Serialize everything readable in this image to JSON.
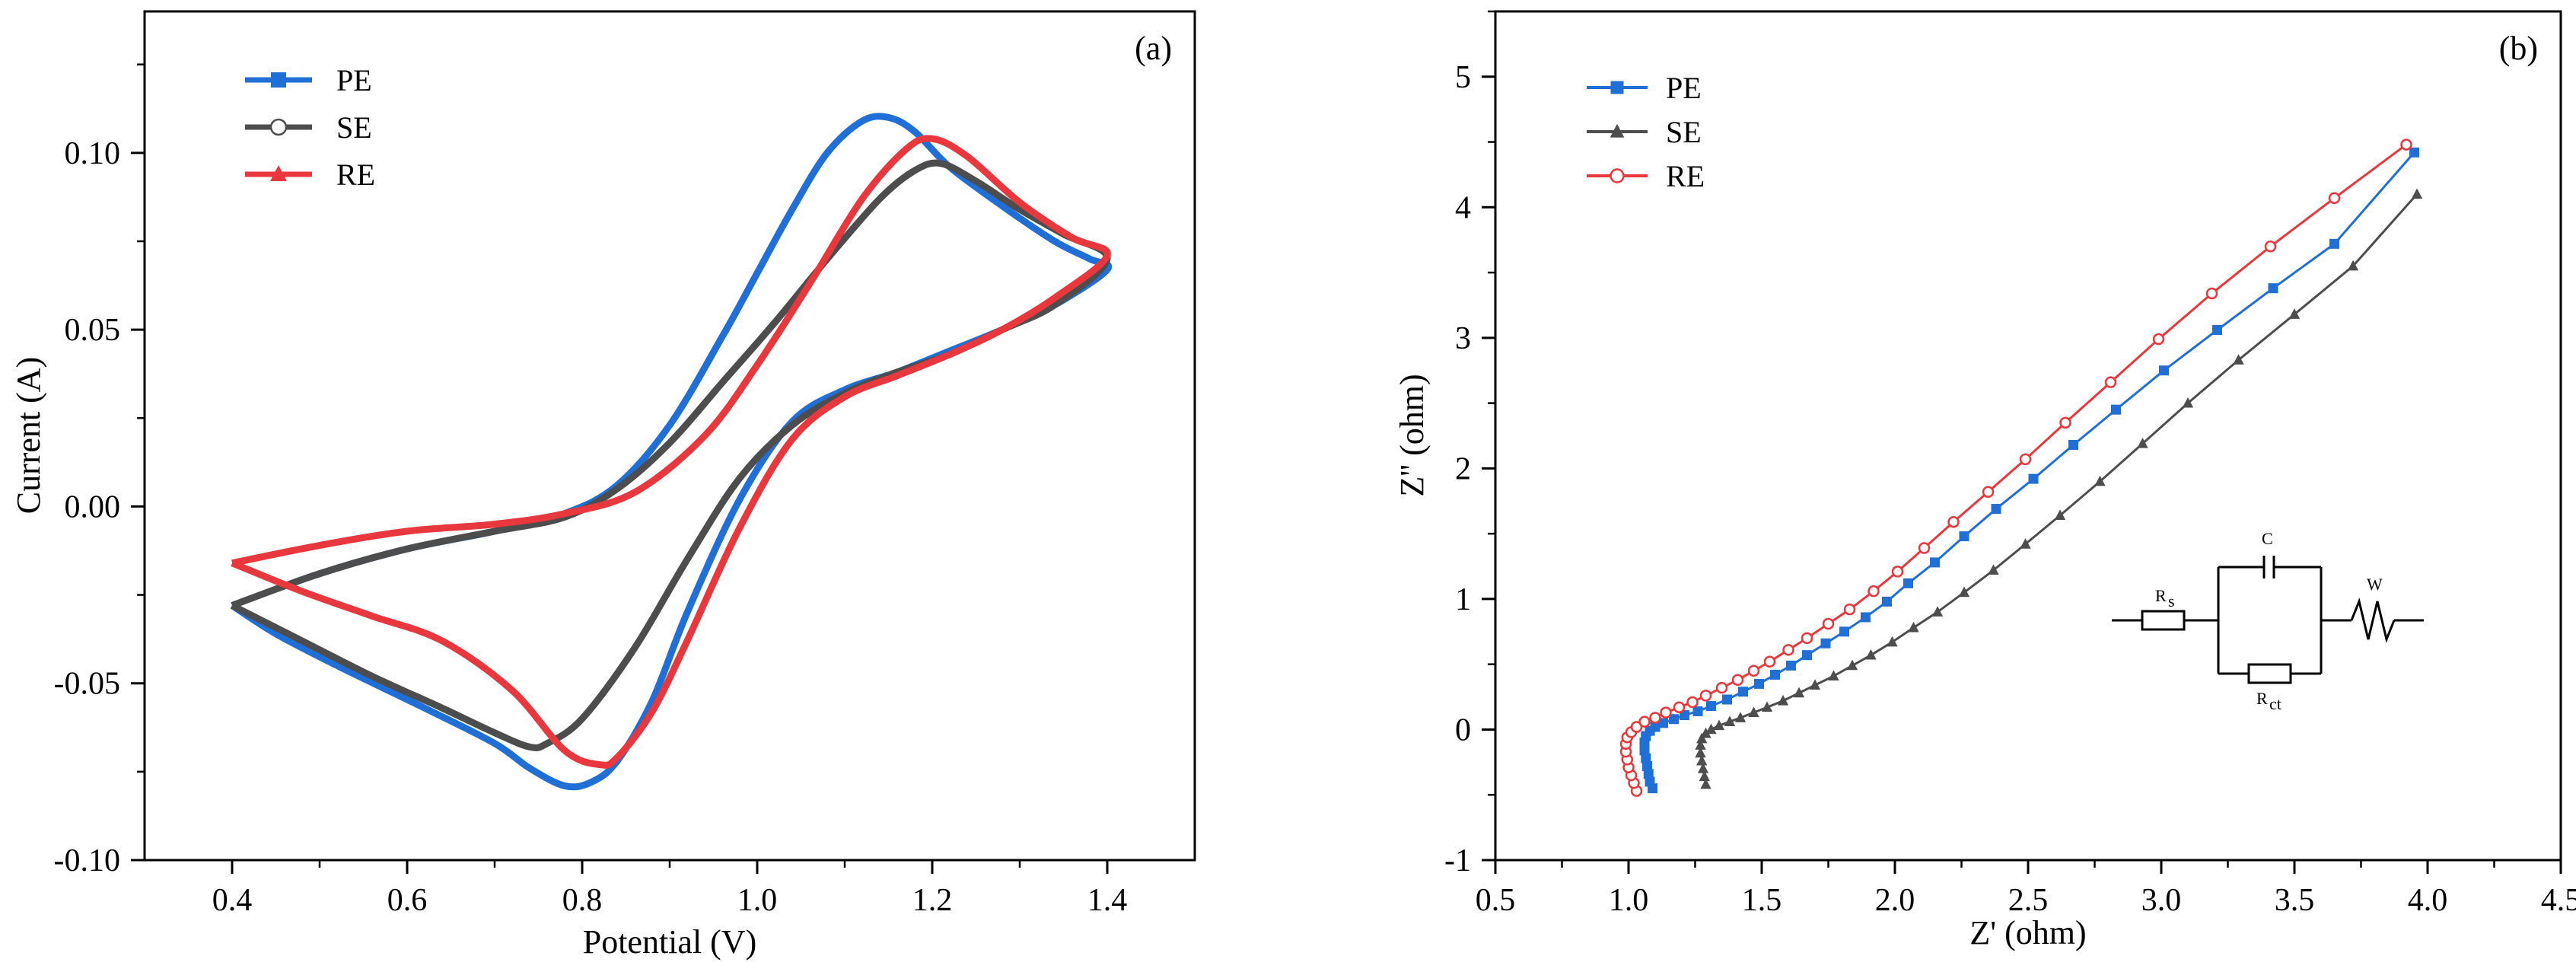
{
  "chart_data": [
    {
      "id": "cv",
      "type": "line",
      "panel_label": "(a)",
      "xlabel": "Potential (V)",
      "ylabel": "Current (A)",
      "xlim": [
        0.3,
        1.5
      ],
      "ylim": [
        -0.1,
        0.14
      ],
      "xticks": [
        0.4,
        0.6,
        0.8,
        1.0,
        1.2,
        1.4
      ],
      "xtick_labels": [
        "0.4",
        "0.6",
        "0.8",
        "1.0",
        "1.2",
        "1.4"
      ],
      "yticks": [
        -0.1,
        -0.05,
        0.0,
        0.05,
        0.1
      ],
      "ytick_labels": [
        "-0.10",
        "-0.05",
        "0.00",
        "0.05",
        "0.10"
      ],
      "legend_position": "top-left",
      "series": [
        {
          "name": "PE",
          "color": "#1f6fd6",
          "marker": "square",
          "forward": [
            [
              0.4,
              -0.028
            ],
            [
              0.5,
              -0.019
            ],
            [
              0.6,
              -0.012
            ],
            [
              0.7,
              -0.007
            ],
            [
              0.78,
              -0.002
            ],
            [
              0.84,
              0.006
            ],
            [
              0.9,
              0.023
            ],
            [
              0.96,
              0.048
            ],
            [
              1.0,
              0.066
            ],
            [
              1.04,
              0.084
            ],
            [
              1.08,
              0.1
            ],
            [
              1.12,
              0.109
            ],
            [
              1.15,
              0.11
            ],
            [
              1.18,
              0.106
            ],
            [
              1.22,
              0.096
            ],
            [
              1.28,
              0.085
            ],
            [
              1.34,
              0.075
            ],
            [
              1.38,
              0.07
            ],
            [
              1.4,
              0.067
            ]
          ],
          "reverse": [
            [
              1.4,
              0.067
            ],
            [
              1.34,
              0.057
            ],
            [
              1.28,
              0.05
            ],
            [
              1.22,
              0.044
            ],
            [
              1.16,
              0.038
            ],
            [
              1.1,
              0.033
            ],
            [
              1.04,
              0.024
            ],
            [
              0.98,
              0.002
            ],
            [
              0.92,
              -0.03
            ],
            [
              0.88,
              -0.055
            ],
            [
              0.84,
              -0.072
            ],
            [
              0.81,
              -0.078
            ],
            [
              0.78,
              -0.079
            ],
            [
              0.74,
              -0.074
            ],
            [
              0.7,
              -0.067
            ],
            [
              0.62,
              -0.057
            ],
            [
              0.52,
              -0.045
            ],
            [
              0.45,
              -0.036
            ],
            [
              0.4,
              -0.028
            ]
          ]
        },
        {
          "name": "SE",
          "color": "#4d4d4d",
          "marker": "circle",
          "forward": [
            [
              0.4,
              -0.028
            ],
            [
              0.5,
              -0.019
            ],
            [
              0.6,
              -0.012
            ],
            [
              0.7,
              -0.007
            ],
            [
              0.78,
              -0.003
            ],
            [
              0.84,
              0.005
            ],
            [
              0.9,
              0.018
            ],
            [
              0.96,
              0.035
            ],
            [
              1.02,
              0.052
            ],
            [
              1.08,
              0.07
            ],
            [
              1.14,
              0.087
            ],
            [
              1.18,
              0.095
            ],
            [
              1.21,
              0.097
            ],
            [
              1.25,
              0.092
            ],
            [
              1.3,
              0.084
            ],
            [
              1.35,
              0.077
            ],
            [
              1.4,
              0.07
            ]
          ],
          "reverse": [
            [
              1.4,
              0.067
            ],
            [
              1.34,
              0.057
            ],
            [
              1.28,
              0.05
            ],
            [
              1.22,
              0.043
            ],
            [
              1.16,
              0.038
            ],
            [
              1.1,
              0.032
            ],
            [
              1.04,
              0.023
            ],
            [
              0.98,
              0.008
            ],
            [
              0.92,
              -0.015
            ],
            [
              0.86,
              -0.04
            ],
            [
              0.8,
              -0.06
            ],
            [
              0.76,
              -0.067
            ],
            [
              0.74,
              -0.068
            ],
            [
              0.7,
              -0.064
            ],
            [
              0.64,
              -0.057
            ],
            [
              0.56,
              -0.048
            ],
            [
              0.48,
              -0.038
            ],
            [
              0.4,
              -0.028
            ]
          ]
        },
        {
          "name": "RE",
          "color": "#e8383d",
          "marker": "triangle",
          "forward": [
            [
              0.4,
              -0.016
            ],
            [
              0.5,
              -0.011
            ],
            [
              0.6,
              -0.007
            ],
            [
              0.7,
              -0.005
            ],
            [
              0.78,
              -0.002
            ],
            [
              0.86,
              0.004
            ],
            [
              0.94,
              0.02
            ],
            [
              1.0,
              0.04
            ],
            [
              1.06,
              0.063
            ],
            [
              1.12,
              0.087
            ],
            [
              1.17,
              0.101
            ],
            [
              1.2,
              0.104
            ],
            [
              1.24,
              0.099
            ],
            [
              1.3,
              0.086
            ],
            [
              1.36,
              0.076
            ],
            [
              1.4,
              0.071
            ]
          ],
          "reverse": [
            [
              1.4,
              0.071
            ],
            [
              1.34,
              0.059
            ],
            [
              1.28,
              0.05
            ],
            [
              1.22,
              0.043
            ],
            [
              1.16,
              0.037
            ],
            [
              1.1,
              0.031
            ],
            [
              1.04,
              0.019
            ],
            [
              0.98,
              -0.006
            ],
            [
              0.92,
              -0.038
            ],
            [
              0.88,
              -0.058
            ],
            [
              0.84,
              -0.071
            ],
            [
              0.82,
              -0.073
            ],
            [
              0.78,
              -0.069
            ],
            [
              0.72,
              -0.052
            ],
            [
              0.64,
              -0.038
            ],
            [
              0.56,
              -0.031
            ],
            [
              0.48,
              -0.024
            ],
            [
              0.4,
              -0.016
            ]
          ]
        }
      ]
    },
    {
      "id": "eis",
      "type": "line",
      "panel_label": "(b)",
      "xlabel": "Z' (ohm)",
      "ylabel": "Z'' (ohm)",
      "xlim": [
        0.5,
        4.5
      ],
      "ylim": [
        -1,
        5.5
      ],
      "xticks": [
        0.5,
        1.0,
        1.5,
        2.0,
        2.5,
        3.0,
        3.5,
        4.0,
        4.5
      ],
      "xtick_labels": [
        "0.5",
        "1.0",
        "1.5",
        "2.0",
        "2.5",
        "3.0",
        "3.5",
        "4.0",
        "4.5"
      ],
      "yticks": [
        -1,
        0,
        1,
        2,
        3,
        4,
        5
      ],
      "ytick_labels": [
        "-1",
        "0",
        "1",
        "2",
        "3",
        "4",
        "5"
      ],
      "legend_position": "top-left",
      "series": [
        {
          "name": "PE",
          "color": "#1f6fd6",
          "marker": "square",
          "points": [
            [
              1.09,
              -0.45
            ],
            [
              1.08,
              -0.4
            ],
            [
              1.075,
              -0.34
            ],
            [
              1.07,
              -0.28
            ],
            [
              1.065,
              -0.22
            ],
            [
              1.06,
              -0.16
            ],
            [
              1.06,
              -0.1
            ],
            [
              1.065,
              -0.05
            ],
            [
              1.08,
              -0.01
            ],
            [
              1.1,
              0.02
            ],
            [
              1.13,
              0.05
            ],
            [
              1.17,
              0.08
            ],
            [
              1.21,
              0.11
            ],
            [
              1.26,
              0.14
            ],
            [
              1.31,
              0.18
            ],
            [
              1.37,
              0.23
            ],
            [
              1.43,
              0.29
            ],
            [
              1.49,
              0.35
            ],
            [
              1.55,
              0.42
            ],
            [
              1.61,
              0.49
            ],
            [
              1.67,
              0.57
            ],
            [
              1.74,
              0.66
            ],
            [
              1.81,
              0.75
            ],
            [
              1.89,
              0.86
            ],
            [
              1.97,
              0.98
            ],
            [
              2.05,
              1.12
            ],
            [
              2.15,
              1.28
            ],
            [
              2.26,
              1.48
            ],
            [
              2.38,
              1.69
            ],
            [
              2.52,
              1.92
            ],
            [
              2.67,
              2.18
            ],
            [
              2.83,
              2.45
            ],
            [
              3.01,
              2.75
            ],
            [
              3.21,
              3.06
            ],
            [
              3.42,
              3.38
            ],
            [
              3.65,
              3.72
            ],
            [
              3.95,
              4.42
            ]
          ]
        },
        {
          "name": "SE",
          "color": "#4d4d4d",
          "marker": "triangle",
          "points": [
            [
              1.29,
              -0.42
            ],
            [
              1.285,
              -0.36
            ],
            [
              1.28,
              -0.3
            ],
            [
              1.275,
              -0.24
            ],
            [
              1.27,
              -0.18
            ],
            [
              1.27,
              -0.12
            ],
            [
              1.275,
              -0.07
            ],
            [
              1.29,
              -0.03
            ],
            [
              1.31,
              0.0
            ],
            [
              1.34,
              0.03
            ],
            [
              1.38,
              0.06
            ],
            [
              1.42,
              0.09
            ],
            [
              1.47,
              0.13
            ],
            [
              1.52,
              0.17
            ],
            [
              1.58,
              0.22
            ],
            [
              1.64,
              0.28
            ],
            [
              1.7,
              0.34
            ],
            [
              1.77,
              0.41
            ],
            [
              1.84,
              0.49
            ],
            [
              1.91,
              0.57
            ],
            [
              1.99,
              0.67
            ],
            [
              2.07,
              0.78
            ],
            [
              2.16,
              0.9
            ],
            [
              2.26,
              1.05
            ],
            [
              2.37,
              1.22
            ],
            [
              2.49,
              1.42
            ],
            [
              2.62,
              1.64
            ],
            [
              2.77,
              1.9
            ],
            [
              2.93,
              2.19
            ],
            [
              3.1,
              2.5
            ],
            [
              3.29,
              2.83
            ],
            [
              3.5,
              3.18
            ],
            [
              3.72,
              3.55
            ],
            [
              3.96,
              4.1
            ]
          ]
        },
        {
          "name": "RE",
          "color": "#e8383d",
          "marker": "circle",
          "points": [
            [
              1.03,
              -0.47
            ],
            [
              1.02,
              -0.41
            ],
            [
              1.01,
              -0.35
            ],
            [
              1.0,
              -0.29
            ],
            [
              0.995,
              -0.23
            ],
            [
              0.99,
              -0.17
            ],
            [
              0.99,
              -0.11
            ],
            [
              0.995,
              -0.06
            ],
            [
              1.01,
              -0.02
            ],
            [
              1.03,
              0.02
            ],
            [
              1.06,
              0.06
            ],
            [
              1.1,
              0.09
            ],
            [
              1.14,
              0.13
            ],
            [
              1.19,
              0.17
            ],
            [
              1.24,
              0.21
            ],
            [
              1.29,
              0.26
            ],
            [
              1.35,
              0.32
            ],
            [
              1.41,
              0.38
            ],
            [
              1.47,
              0.45
            ],
            [
              1.53,
              0.52
            ],
            [
              1.6,
              0.61
            ],
            [
              1.67,
              0.7
            ],
            [
              1.75,
              0.81
            ],
            [
              1.83,
              0.92
            ],
            [
              1.92,
              1.06
            ],
            [
              2.01,
              1.21
            ],
            [
              2.11,
              1.39
            ],
            [
              2.22,
              1.59
            ],
            [
              2.35,
              1.82
            ],
            [
              2.49,
              2.07
            ],
            [
              2.64,
              2.35
            ],
            [
              2.81,
              2.66
            ],
            [
              2.99,
              2.99
            ],
            [
              3.19,
              3.34
            ],
            [
              3.41,
              3.7
            ],
            [
              3.65,
              4.07
            ],
            [
              3.92,
              4.48
            ]
          ]
        }
      ],
      "inset_circuit": {
        "labels": [
          "R",
          "s",
          "C",
          "W",
          "R",
          "ct"
        ]
      }
    }
  ]
}
